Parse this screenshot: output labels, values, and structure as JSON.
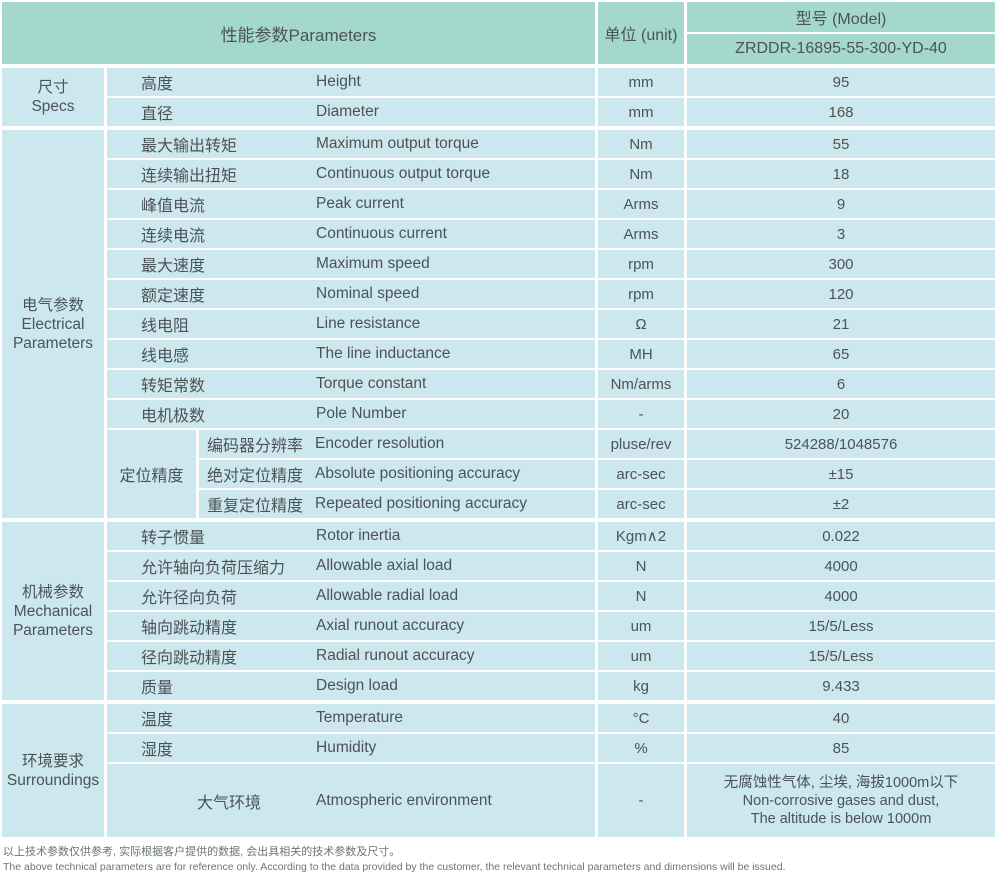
{
  "colors": {
    "header_teal": "#a5d8cc",
    "cell_blue": "#cde7ef",
    "text_gray": "#4b5356"
  },
  "header": {
    "parameters": "性能参数Parameters",
    "unit": "单位 (unit)",
    "model_label": "型号 (Model)",
    "model_value": "ZRDDR-16895-55-300-YD-40"
  },
  "sections": {
    "specs": {
      "cn": "尺寸",
      "en": "Specs"
    },
    "electrical": {
      "cn": "电气参数",
      "en1": "Electrical",
      "en2": "Parameters"
    },
    "mechanical": {
      "cn": "机械参数",
      "en1": "Mechanical",
      "en2": "Parameters"
    },
    "surroundings": {
      "cn": "环境要求",
      "en": "Surroundings"
    }
  },
  "positioning_group_label": "定位精度",
  "rows": {
    "specs": [
      {
        "cn": "高度",
        "en": "Height",
        "unit": "mm",
        "value": "95"
      },
      {
        "cn": "直径",
        "en": "Diameter",
        "unit": "mm",
        "value": "168"
      }
    ],
    "electrical": [
      {
        "cn": "最大输出转矩",
        "en": "Maximum output torque",
        "unit": "Nm",
        "value": "55"
      },
      {
        "cn": "连续输出扭矩",
        "en": "Continuous output torque",
        "unit": "Nm",
        "value": "18"
      },
      {
        "cn": "峰值电流",
        "en": "Peak current",
        "unit": "Arms",
        "value": "9"
      },
      {
        "cn": "连续电流",
        "en": "Continuous current",
        "unit": "Arms",
        "value": "3"
      },
      {
        "cn": "最大速度",
        "en": "Maximum speed",
        "unit": "rpm",
        "value": "300"
      },
      {
        "cn": "额定速度",
        "en": "Nominal speed",
        "unit": "rpm",
        "value": "120"
      },
      {
        "cn": "线电阻",
        "en": "Line resistance",
        "unit": "Ω",
        "value": "21"
      },
      {
        "cn": "线电感",
        "en": "The line inductance",
        "unit": "MH",
        "value": "65"
      },
      {
        "cn": "转矩常数",
        "en": "Torque constant",
        "unit": "Nm/arms",
        "value": "6"
      },
      {
        "cn": "电机极数",
        "en": "Pole Number",
        "unit": "-",
        "value": "20"
      }
    ],
    "positioning": [
      {
        "cn": "编码器分辨率",
        "en": "Encoder resolution",
        "unit": "pluse/rev",
        "value": "524288/1048576"
      },
      {
        "cn": "绝对定位精度",
        "en": "Absolute positioning accuracy",
        "unit": "arc-sec",
        "value": "±15"
      },
      {
        "cn": "重复定位精度",
        "en": "Repeated positioning accuracy",
        "unit": "arc-sec",
        "value": "±2"
      }
    ],
    "mechanical": [
      {
        "cn": "转子惯量",
        "en": "Rotor inertia",
        "unit": "Kgm∧2",
        "value": "0.022"
      },
      {
        "cn": "允许轴向负荷压缩力",
        "en": "Allowable axial load",
        "unit": "N",
        "value": "4000"
      },
      {
        "cn": "允许径向负荷",
        "en": "Allowable radial load",
        "unit": "N",
        "value": "4000"
      },
      {
        "cn": "轴向跳动精度",
        "en": "Axial runout accuracy",
        "unit": "um",
        "value": "15/5/Less"
      },
      {
        "cn": "径向跳动精度",
        "en": "Radial runout accuracy",
        "unit": "um",
        "value": "15/5/Less"
      },
      {
        "cn": "质量",
        "en": "Design load",
        "unit": "kg",
        "value": "9.433"
      }
    ],
    "surroundings": [
      {
        "cn": "温度",
        "en": "Temperature",
        "unit": "°C",
        "value": "40"
      },
      {
        "cn": "湿度",
        "en": "Humidity",
        "unit": "%",
        "value": "85"
      }
    ],
    "atmospheric": {
      "cn": "大气环境",
      "en": "Atmospheric environment",
      "unit": "-",
      "value_line1": "无腐蚀性气体, 尘埃, 海拔1000m以下",
      "value_line2": "Non-corrosive gases and dust,",
      "value_line3": "The altitude is below 1000m"
    }
  },
  "footer": {
    "line1": "以上技术参数仅供参考, 实际根据客户提供的数据, 会出具相关的技术参数及尺寸。",
    "line2": "The above technical parameters are for reference only. According to the data provided by the customer, the relevant technical parameters and dimensions will be issued."
  }
}
